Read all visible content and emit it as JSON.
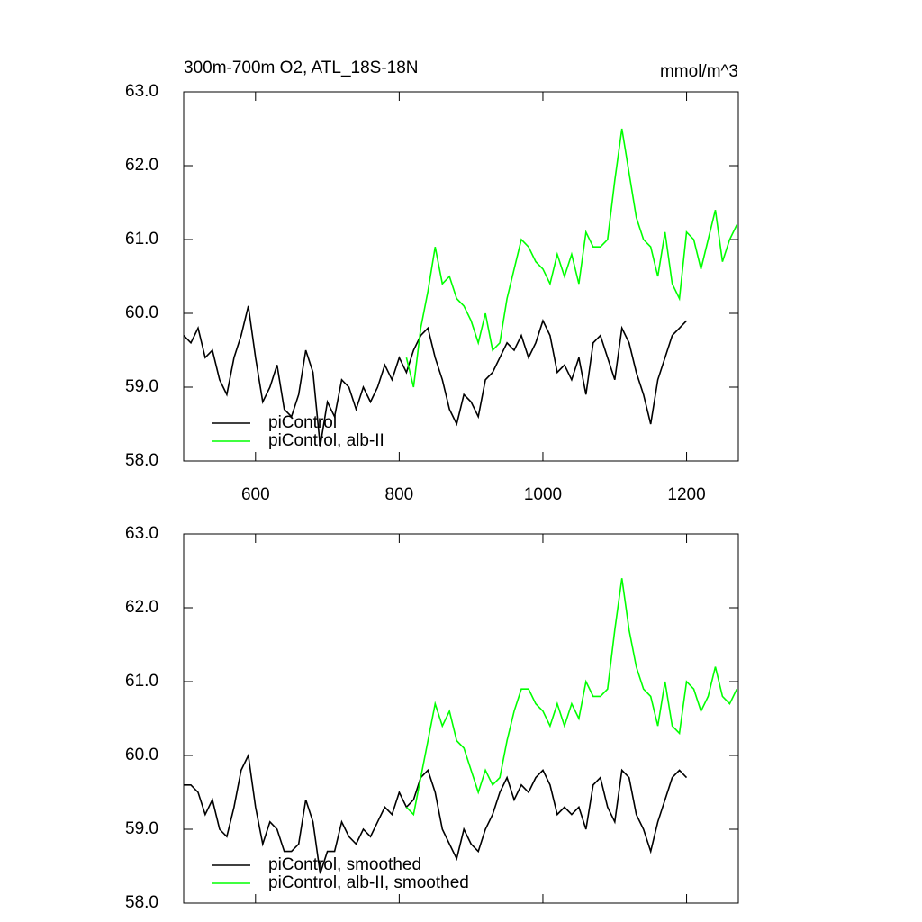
{
  "chart_data": [
    {
      "type": "line",
      "title": "300m-700m O2, ATL_18S-18N",
      "units": "mmol/m^3",
      "xlim": [
        500,
        1272
      ],
      "xticks": [
        600,
        800,
        1000,
        1200
      ],
      "ylim": [
        58,
        63
      ],
      "yticks": [
        {
          "value": 58,
          "label": "58.0"
        },
        {
          "value": 59,
          "label": "59.0"
        },
        {
          "value": 60,
          "label": "60.0"
        },
        {
          "value": 61,
          "label": "61.0"
        },
        {
          "value": 62,
          "label": "62.0"
        },
        {
          "value": 63,
          "label": "63.0"
        }
      ],
      "legend": "lower left",
      "series": [
        {
          "name": "piControl",
          "color": "#000000",
          "x": [
            500,
            510,
            520,
            530,
            540,
            550,
            560,
            570,
            580,
            590,
            600,
            610,
            620,
            630,
            640,
            650,
            660,
            670,
            680,
            690,
            700,
            710,
            720,
            730,
            740,
            750,
            760,
            770,
            780,
            790,
            800,
            810,
            820,
            830,
            840,
            850,
            860,
            870,
            880,
            890,
            900,
            910,
            920,
            930,
            940,
            950,
            960,
            970,
            980,
            990,
            1000,
            1010,
            1020,
            1030,
            1040,
            1050,
            1060,
            1070,
            1080,
            1090,
            1100,
            1110,
            1120,
            1130,
            1140,
            1150,
            1160,
            1170,
            1180,
            1190,
            1200
          ],
          "values": [
            59.7,
            59.6,
            59.8,
            59.4,
            59.5,
            59.1,
            58.9,
            59.4,
            59.7,
            60.1,
            59.4,
            58.8,
            59.0,
            59.3,
            58.7,
            58.6,
            58.9,
            59.5,
            59.2,
            58.2,
            58.8,
            58.6,
            59.1,
            59.0,
            58.7,
            59.0,
            58.8,
            59.0,
            59.3,
            59.1,
            59.4,
            59.2,
            59.5,
            59.7,
            59.8,
            59.4,
            59.1,
            58.7,
            58.5,
            58.9,
            58.8,
            58.6,
            59.1,
            59.2,
            59.4,
            59.6,
            59.5,
            59.7,
            59.4,
            59.6,
            59.9,
            59.7,
            59.2,
            59.3,
            59.1,
            59.4,
            58.9,
            59.6,
            59.7,
            59.4,
            59.1,
            59.8,
            59.6,
            59.2,
            58.9,
            58.5,
            59.1,
            59.4,
            59.7,
            59.8,
            59.9
          ]
        },
        {
          "name": "piControl, alb-II",
          "color": "#00ff00",
          "x": [
            810,
            820,
            830,
            840,
            850,
            860,
            870,
            880,
            890,
            900,
            910,
            920,
            930,
            940,
            950,
            960,
            970,
            980,
            990,
            1000,
            1010,
            1020,
            1030,
            1040,
            1050,
            1060,
            1070,
            1080,
            1090,
            1100,
            1110,
            1120,
            1130,
            1140,
            1150,
            1160,
            1170,
            1180,
            1190,
            1200,
            1210,
            1220,
            1230,
            1240,
            1250,
            1260,
            1270
          ],
          "values": [
            59.4,
            59.0,
            59.8,
            60.3,
            60.9,
            60.4,
            60.5,
            60.2,
            60.1,
            59.9,
            59.6,
            60.0,
            59.5,
            59.6,
            60.2,
            60.6,
            61.0,
            60.9,
            60.7,
            60.6,
            60.4,
            60.8,
            60.5,
            60.8,
            60.4,
            61.1,
            60.9,
            60.9,
            61.0,
            61.8,
            62.5,
            61.9,
            61.3,
            61.0,
            60.9,
            60.5,
            61.1,
            60.4,
            60.2,
            61.1,
            61.0,
            60.6,
            61.0,
            61.4,
            60.7,
            61.0,
            61.2
          ]
        }
      ]
    },
    {
      "type": "line",
      "xlim": [
        500,
        1272
      ],
      "xticks": [
        600,
        800,
        1000,
        1200
      ],
      "ylim": [
        58,
        63
      ],
      "yticks": [
        {
          "value": 58,
          "label": "58.0"
        },
        {
          "value": 59,
          "label": "59.0"
        },
        {
          "value": 60,
          "label": "60.0"
        },
        {
          "value": 61,
          "label": "61.0"
        },
        {
          "value": 62,
          "label": "62.0"
        },
        {
          "value": 63,
          "label": "63.0"
        }
      ],
      "legend": "lower left",
      "series": [
        {
          "name": "piControl, smoothed",
          "color": "#000000",
          "x": [
            500,
            510,
            520,
            530,
            540,
            550,
            560,
            570,
            580,
            590,
            600,
            610,
            620,
            630,
            640,
            650,
            660,
            670,
            680,
            690,
            700,
            710,
            720,
            730,
            740,
            750,
            760,
            770,
            780,
            790,
            800,
            810,
            820,
            830,
            840,
            850,
            860,
            870,
            880,
            890,
            900,
            910,
            920,
            930,
            940,
            950,
            960,
            970,
            980,
            990,
            1000,
            1010,
            1020,
            1030,
            1040,
            1050,
            1060,
            1070,
            1080,
            1090,
            1100,
            1110,
            1120,
            1130,
            1140,
            1150,
            1160,
            1170,
            1180,
            1190,
            1200
          ],
          "values": [
            59.6,
            59.6,
            59.5,
            59.2,
            59.4,
            59.0,
            58.9,
            59.3,
            59.8,
            60.0,
            59.3,
            58.8,
            59.1,
            59.0,
            58.7,
            58.7,
            58.8,
            59.4,
            59.1,
            58.4,
            58.7,
            58.7,
            59.1,
            58.9,
            58.8,
            59.0,
            58.9,
            59.1,
            59.3,
            59.2,
            59.5,
            59.3,
            59.4,
            59.7,
            59.8,
            59.5,
            59.0,
            58.8,
            58.6,
            59.0,
            58.8,
            58.7,
            59.0,
            59.2,
            59.5,
            59.7,
            59.4,
            59.6,
            59.5,
            59.7,
            59.8,
            59.6,
            59.2,
            59.3,
            59.2,
            59.3,
            59.0,
            59.6,
            59.7,
            59.3,
            59.1,
            59.8,
            59.7,
            59.2,
            59.0,
            58.7,
            59.1,
            59.4,
            59.7,
            59.8,
            59.7
          ]
        },
        {
          "name": "piControl, alb-II, smoothed",
          "color": "#00ff00",
          "x": [
            810,
            820,
            830,
            840,
            850,
            860,
            870,
            880,
            890,
            900,
            910,
            920,
            930,
            940,
            950,
            960,
            970,
            980,
            990,
            1000,
            1010,
            1020,
            1030,
            1040,
            1050,
            1060,
            1070,
            1080,
            1090,
            1100,
            1110,
            1120,
            1130,
            1140,
            1150,
            1160,
            1170,
            1180,
            1190,
            1200,
            1210,
            1220,
            1230,
            1240,
            1250,
            1260,
            1270
          ],
          "values": [
            59.3,
            59.2,
            59.7,
            60.2,
            60.7,
            60.4,
            60.6,
            60.2,
            60.1,
            59.8,
            59.5,
            59.8,
            59.6,
            59.7,
            60.2,
            60.6,
            60.9,
            60.9,
            60.7,
            60.6,
            60.4,
            60.7,
            60.4,
            60.7,
            60.5,
            61.0,
            60.8,
            60.8,
            60.9,
            61.7,
            62.4,
            61.7,
            61.2,
            60.9,
            60.8,
            60.4,
            61.0,
            60.4,
            60.3,
            61.0,
            60.9,
            60.6,
            60.8,
            61.2,
            60.8,
            60.7,
            60.9
          ]
        }
      ]
    }
  ]
}
